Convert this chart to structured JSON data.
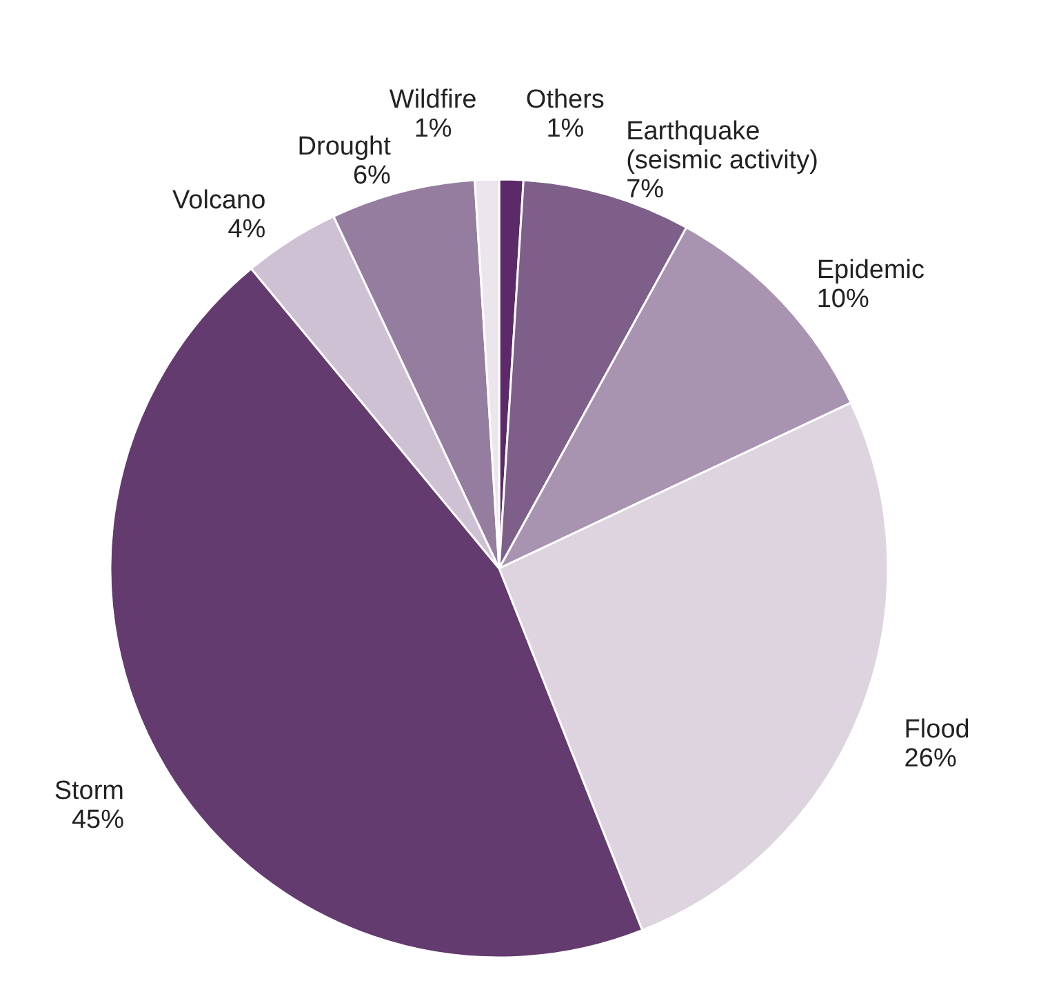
{
  "chart_data": {
    "type": "pie",
    "categories": [
      "Others",
      "Earthquake (seismic activity)",
      "Epidemic",
      "Flood",
      "Storm",
      "Volcano",
      "Drought",
      "Wildfire"
    ],
    "values": [
      1,
      7,
      10,
      26,
      45,
      4,
      6,
      1
    ],
    "value_labels": [
      "1%",
      "7%",
      "10%",
      "26%",
      "45%",
      "4%",
      "6%",
      "1%"
    ],
    "colors": [
      "#5c2a68",
      "#7d5f8a",
      "#a893b0",
      "#ddd4e0",
      "#633b6f",
      "#cfc1d4",
      "#957d9f",
      "#ebe5ec"
    ]
  }
}
